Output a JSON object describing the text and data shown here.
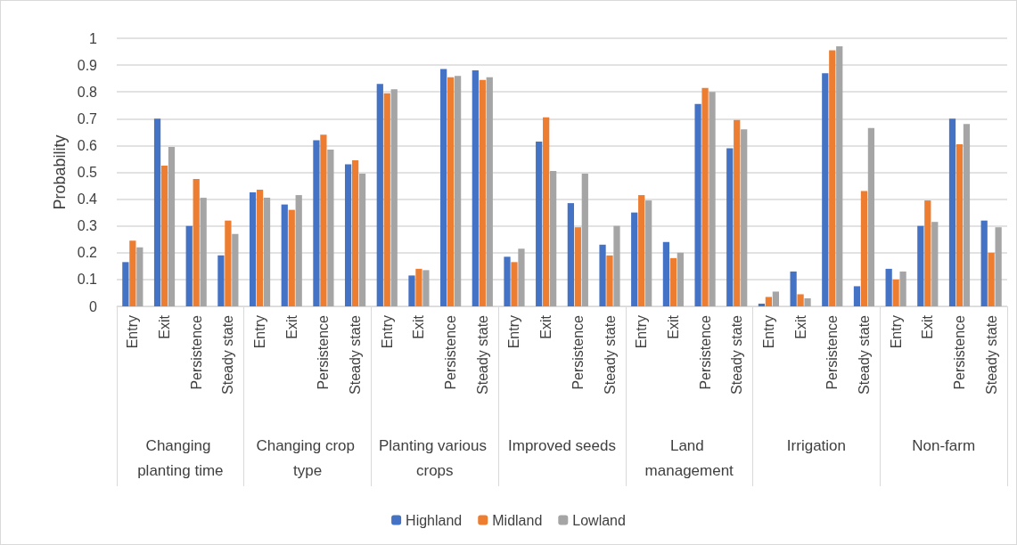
{
  "chart_data": {
    "type": "bar",
    "ylabel": "Probability",
    "categories": [
      "Entry",
      "Exit",
      "Persistence",
      "Steady state",
      "Entry",
      "Exit",
      "Persistence",
      "Steady state",
      "Entry",
      "Exit",
      "Persistence",
      "Steady state",
      "Entry",
      "Exit",
      "Persistence",
      "Steady state",
      "Entry",
      "Exit",
      "Persistence",
      "Steady state",
      "Entry",
      "Exit",
      "Persistence",
      "Steady state",
      "Entry",
      "Exit",
      "Persistence",
      "Steady state"
    ],
    "annotations": [
      "Changing planting time",
      "Changing crop type",
      "Planting various crops",
      "Improved seeds",
      "Land management",
      "Irrigation",
      "Non-farm"
    ],
    "series": [
      {
        "name": "Highland",
        "color": "#4472c4",
        "values": [
          0.165,
          0.7,
          0.3,
          0.19,
          0.425,
          0.38,
          0.62,
          0.53,
          0.83,
          0.115,
          0.885,
          0.88,
          0.185,
          0.615,
          0.385,
          0.23,
          0.35,
          0.24,
          0.755,
          0.59,
          0.01,
          0.13,
          0.87,
          0.075,
          0.14,
          0.3,
          0.7,
          0.32
        ]
      },
      {
        "name": "Midland",
        "color": "#ed7d31",
        "values": [
          0.245,
          0.525,
          0.475,
          0.32,
          0.435,
          0.36,
          0.64,
          0.545,
          0.795,
          0.14,
          0.855,
          0.845,
          0.165,
          0.705,
          0.295,
          0.19,
          0.415,
          0.18,
          0.815,
          0.695,
          0.035,
          0.045,
          0.955,
          0.43,
          0.1,
          0.395,
          0.605,
          0.2
        ]
      },
      {
        "name": "Lowland",
        "color": "#a5a5a5",
        "values": [
          0.22,
          0.595,
          0.405,
          0.27,
          0.405,
          0.415,
          0.585,
          0.495,
          0.81,
          0.135,
          0.86,
          0.855,
          0.215,
          0.505,
          0.495,
          0.3,
          0.395,
          0.2,
          0.8,
          0.66,
          0.055,
          0.03,
          0.97,
          0.665,
          0.13,
          0.315,
          0.68,
          0.295
        ]
      }
    ],
    "ylim": [
      0,
      1
    ],
    "yticks": [
      0,
      0.1,
      0.2,
      0.3,
      0.4,
      0.5,
      0.6,
      0.7,
      0.8,
      0.9,
      1
    ],
    "grid": "y",
    "legend": "bottom"
  }
}
